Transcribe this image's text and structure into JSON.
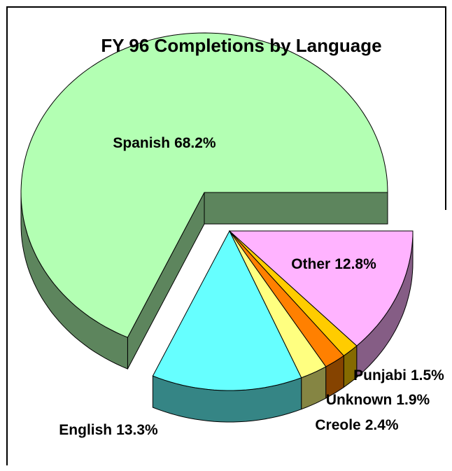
{
  "chart_data": {
    "type": "pie3d",
    "title": "FY 96 Completions by Language",
    "categories": [
      "Spanish",
      "English",
      "Creole",
      "Unknown",
      "Punjabi",
      "Other"
    ],
    "values": [
      68.2,
      13.3,
      2.4,
      1.9,
      1.5,
      12.8
    ],
    "value_labels": [
      "68.2%",
      "13.3%",
      "2.4%",
      "1.9%",
      "1.5%",
      "12.8%"
    ],
    "colors": [
      "#b3ffb3",
      "#66ffff",
      "#ffff80",
      "#ff8000",
      "#ffcc00",
      "#ffb3ff"
    ]
  }
}
